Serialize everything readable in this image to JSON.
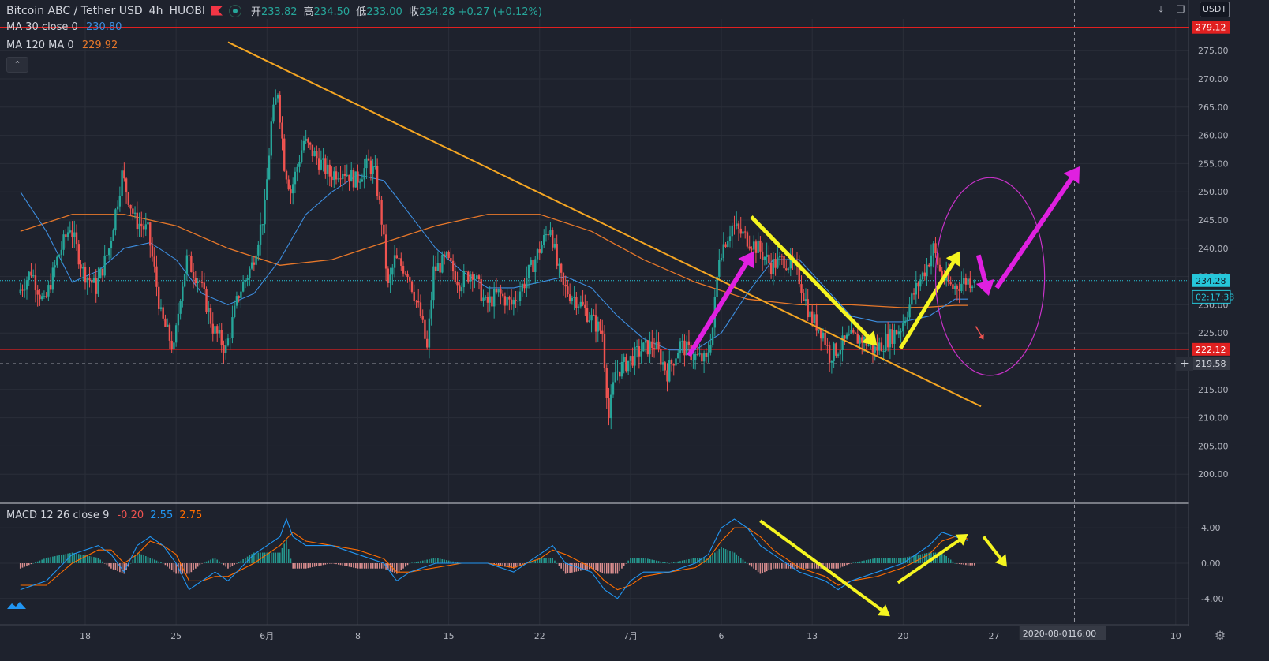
{
  "header": {
    "symbol": "Bitcoin ABC / Tether USD",
    "interval": "4h",
    "exchange": "HUOBI",
    "open_label": "开",
    "open": "233.82",
    "high_label": "高",
    "high": "234.50",
    "low_label": "低",
    "low": "233.00",
    "close_label": "收",
    "close": "234.28",
    "change": "+0.27 (+0.12%)"
  },
  "indicators": [
    {
      "name": "MA 30 close 0",
      "value": "230.80",
      "color": "#3d8ee0"
    },
    {
      "name": "MA 120 MA 0",
      "value": "229.92",
      "color": "#e8782a"
    }
  ],
  "macd": {
    "name": "MACD 12 26 close 9",
    "hist": "-0.20",
    "macd": "2.55",
    "signal": "2.75"
  },
  "toolbar": {
    "currency": "USDT"
  },
  "icons": [
    "download-icon",
    "window-icon",
    "settings-gear-icon",
    "plus-icon",
    "tradingview-logo-icon",
    "flag-icon",
    "live-dot-icon"
  ],
  "colors": {
    "up": "#26a69a",
    "down": "#ef5350",
    "ma30": "#3d8ee0",
    "ma120": "#e8782a",
    "trendline": "#f5a623",
    "hline": "#e02020",
    "magenta": "#e020e0",
    "yellow": "#f5f520",
    "macd_line": "#2196f3",
    "signal_line": "#ff6d00"
  },
  "chart_data": {
    "type": "candlestick",
    "price_axis": {
      "min": 195,
      "max": 283,
      "ticks": [
        "275.00",
        "270.00",
        "265.00",
        "260.00",
        "255.00",
        "250.00",
        "245.00",
        "240.00",
        "235.00",
        "230.00",
        "225.00",
        "210.00",
        "205.00",
        "200.00"
      ],
      "tick_values": [
        275,
        270,
        265,
        260,
        255,
        250,
        245,
        240,
        235,
        230,
        225,
        210,
        205,
        200
      ],
      "lower_ticks": [
        "215.00"
      ],
      "lower_tick_values": [
        215
      ]
    },
    "price_labels": [
      {
        "text": "279.12",
        "value": 279.12,
        "style": "red"
      },
      {
        "text": "234.28",
        "value": 234.28,
        "style": "cyan"
      },
      {
        "text": "02:17:33",
        "value": 231.4,
        "style": "cyan-outline"
      },
      {
        "text": "222.12",
        "value": 222.12,
        "style": "red"
      },
      {
        "text": "219.58",
        "value": 219.58,
        "style": "grey"
      }
    ],
    "horizontal_lines": [
      {
        "value": 279.12,
        "color": "#e02020"
      },
      {
        "value": 222.12,
        "color": "#e02020"
      }
    ],
    "current_price_line": 234.28,
    "crosshair_price": 219.58,
    "x_axis": {
      "labels": [
        "18",
        "25",
        "6月",
        "8",
        "15",
        "22",
        "7月",
        "6",
        "13",
        "20",
        "27",
        "2020-08-01",
        "16:00",
        "10"
      ],
      "label_positions_days": [
        5,
        12,
        19,
        26,
        33,
        40,
        47,
        54,
        61,
        68,
        75,
        80,
        81.2,
        89
      ]
    },
    "day_start": "2020-05-14",
    "candles_day_range": [
      0,
      73.5
    ],
    "price_keypoints": [
      [
        0,
        232
      ],
      [
        1,
        236
      ],
      [
        2,
        230
      ],
      [
        3,
        238
      ],
      [
        4,
        244
      ],
      [
        5,
        236
      ],
      [
        6,
        233
      ],
      [
        7,
        240
      ],
      [
        8,
        253
      ],
      [
        9,
        245
      ],
      [
        10,
        243
      ],
      [
        10.5,
        236
      ],
      [
        11,
        228
      ],
      [
        12,
        222
      ],
      [
        12.5,
        232
      ],
      [
        13,
        238
      ],
      [
        14,
        234
      ],
      [
        15,
        226
      ],
      [
        16,
        222
      ],
      [
        17,
        232
      ],
      [
        18,
        237
      ],
      [
        19,
        247
      ],
      [
        19.5,
        262
      ],
      [
        20,
        268
      ],
      [
        20.5,
        255
      ],
      [
        21,
        250
      ],
      [
        22,
        259
      ],
      [
        23,
        256
      ],
      [
        24,
        253
      ],
      [
        25,
        254
      ],
      [
        26,
        252
      ],
      [
        27,
        255
      ],
      [
        27.5,
        253
      ],
      [
        28,
        245
      ],
      [
        28.5,
        233
      ],
      [
        29,
        238
      ],
      [
        30,
        236
      ],
      [
        31,
        228
      ],
      [
        31.5,
        222
      ],
      [
        32,
        236
      ],
      [
        33,
        238
      ],
      [
        34,
        234
      ],
      [
        35,
        236
      ],
      [
        36,
        230
      ],
      [
        37,
        232
      ],
      [
        38,
        230
      ],
      [
        39,
        234
      ],
      [
        40,
        239
      ],
      [
        41,
        244
      ],
      [
        41.5,
        237
      ],
      [
        42,
        233
      ],
      [
        43,
        231
      ],
      [
        44,
        228
      ],
      [
        45,
        225
      ],
      [
        45.5,
        210
      ],
      [
        46,
        218
      ],
      [
        47,
        220
      ],
      [
        48,
        222
      ],
      [
        49,
        223
      ],
      [
        50,
        218
      ],
      [
        51,
        223
      ],
      [
        52,
        221
      ],
      [
        53,
        220
      ],
      [
        53.5,
        226
      ],
      [
        54,
        239
      ],
      [
        55,
        244
      ],
      [
        56,
        242
      ],
      [
        57,
        240
      ],
      [
        58,
        237
      ],
      [
        59,
        238
      ],
      [
        60,
        236
      ],
      [
        60.5,
        232
      ],
      [
        61,
        228
      ],
      [
        62,
        225
      ],
      [
        62.5,
        221
      ],
      [
        63,
        222
      ],
      [
        64,
        224
      ],
      [
        65,
        224
      ],
      [
        66,
        222
      ],
      [
        67,
        224
      ],
      [
        68,
        226
      ],
      [
        69,
        232
      ],
      [
        70,
        237
      ],
      [
        70.5,
        240
      ],
      [
        71,
        236
      ],
      [
        71.5,
        234
      ],
      [
        72,
        233
      ],
      [
        73,
        234.3
      ]
    ],
    "ma30_keypoints": [
      [
        0,
        250
      ],
      [
        2,
        243
      ],
      [
        4,
        234
      ],
      [
        6,
        236
      ],
      [
        8,
        240
      ],
      [
        10,
        241
      ],
      [
        12,
        238
      ],
      [
        14,
        232
      ],
      [
        16,
        230
      ],
      [
        18,
        232
      ],
      [
        20,
        238
      ],
      [
        22,
        246
      ],
      [
        24,
        250
      ],
      [
        26,
        253
      ],
      [
        28,
        252
      ],
      [
        30,
        246
      ],
      [
        32,
        240
      ],
      [
        34,
        236
      ],
      [
        36,
        233
      ],
      [
        38,
        233
      ],
      [
        40,
        234
      ],
      [
        42,
        235
      ],
      [
        44,
        233
      ],
      [
        46,
        228
      ],
      [
        48,
        224
      ],
      [
        50,
        222
      ],
      [
        52,
        222
      ],
      [
        54,
        225
      ],
      [
        56,
        232
      ],
      [
        58,
        238
      ],
      [
        60,
        238
      ],
      [
        62,
        233
      ],
      [
        64,
        228
      ],
      [
        66,
        227
      ],
      [
        68,
        227
      ],
      [
        70,
        228
      ],
      [
        72,
        231
      ],
      [
        73,
        231
      ]
    ],
    "ma120_keypoints": [
      [
        0,
        243
      ],
      [
        4,
        246
      ],
      [
        8,
        246
      ],
      [
        12,
        244
      ],
      [
        16,
        240
      ],
      [
        20,
        237
      ],
      [
        24,
        238
      ],
      [
        28,
        241
      ],
      [
        32,
        244
      ],
      [
        36,
        246
      ],
      [
        40,
        246
      ],
      [
        44,
        243
      ],
      [
        48,
        238
      ],
      [
        52,
        234
      ],
      [
        56,
        231
      ],
      [
        60,
        230
      ],
      [
        64,
        230
      ],
      [
        68,
        229.5
      ],
      [
        70,
        229.6
      ],
      [
        72,
        229.9
      ],
      [
        73,
        229.9
      ]
    ],
    "macd_axis": {
      "ticks": [
        "4.00",
        "0.00",
        "-4.00"
      ],
      "tick_values": [
        4,
        0,
        -4
      ],
      "min": -6.5,
      "max": 7.2
    },
    "macd_keypoints": [
      [
        0,
        -3
      ],
      [
        2,
        -2
      ],
      [
        4,
        1
      ],
      [
        6,
        2
      ],
      [
        7,
        1
      ],
      [
        8,
        -1
      ],
      [
        9,
        2
      ],
      [
        10,
        3
      ],
      [
        11,
        2
      ],
      [
        12,
        0
      ],
      [
        13,
        -3
      ],
      [
        14,
        -2
      ],
      [
        15,
        -1
      ],
      [
        16,
        -2
      ],
      [
        18,
        1
      ],
      [
        20,
        3
      ],
      [
        20.5,
        5
      ],
      [
        21,
        3
      ],
      [
        22,
        2
      ],
      [
        24,
        2
      ],
      [
        26,
        1
      ],
      [
        28,
        0
      ],
      [
        29,
        -2
      ],
      [
        30,
        -1
      ],
      [
        32,
        0
      ],
      [
        34,
        0
      ],
      [
        36,
        0
      ],
      [
        38,
        -1
      ],
      [
        40,
        1
      ],
      [
        41,
        2
      ],
      [
        42,
        0
      ],
      [
        44,
        -1
      ],
      [
        45,
        -3
      ],
      [
        46,
        -4
      ],
      [
        47,
        -2
      ],
      [
        48,
        -1
      ],
      [
        50,
        -1
      ],
      [
        52,
        0
      ],
      [
        53,
        1
      ],
      [
        54,
        4
      ],
      [
        55,
        5
      ],
      [
        56,
        4
      ],
      [
        57,
        2
      ],
      [
        58,
        1
      ],
      [
        59,
        0
      ],
      [
        60,
        -1
      ],
      [
        62,
        -2
      ],
      [
        63,
        -3
      ],
      [
        64,
        -2
      ],
      [
        66,
        -1
      ],
      [
        68,
        0
      ],
      [
        70,
        2
      ],
      [
        71,
        3.5
      ],
      [
        72,
        3
      ],
      [
        73,
        2.55
      ]
    ],
    "signal_keypoints": [
      [
        0,
        -2.5
      ],
      [
        2,
        -2.5
      ],
      [
        4,
        0
      ],
      [
        6,
        1.5
      ],
      [
        7,
        1.5
      ],
      [
        8,
        0
      ],
      [
        9,
        1
      ],
      [
        10,
        2.5
      ],
      [
        11,
        2
      ],
      [
        12,
        1
      ],
      [
        13,
        -2
      ],
      [
        14,
        -2
      ],
      [
        15,
        -1.5
      ],
      [
        16,
        -1.5
      ],
      [
        18,
        0
      ],
      [
        20,
        2
      ],
      [
        21,
        3.5
      ],
      [
        22,
        2.5
      ],
      [
        24,
        2
      ],
      [
        26,
        1.5
      ],
      [
        28,
        0.5
      ],
      [
        29,
        -1
      ],
      [
        30,
        -1
      ],
      [
        32,
        -0.5
      ],
      [
        34,
        0
      ],
      [
        36,
        0
      ],
      [
        38,
        -0.5
      ],
      [
        40,
        0.5
      ],
      [
        41,
        1.5
      ],
      [
        42,
        1
      ],
      [
        44,
        -0.5
      ],
      [
        45,
        -2
      ],
      [
        46,
        -3
      ],
      [
        47,
        -2.5
      ],
      [
        48,
        -1.5
      ],
      [
        50,
        -1
      ],
      [
        52,
        -0.5
      ],
      [
        53,
        0.5
      ],
      [
        54,
        2.5
      ],
      [
        55,
        4
      ],
      [
        56,
        4
      ],
      [
        57,
        3
      ],
      [
        58,
        1.5
      ],
      [
        59,
        0.5
      ],
      [
        60,
        -0.5
      ],
      [
        62,
        -1.5
      ],
      [
        63,
        -2.5
      ],
      [
        64,
        -2
      ],
      [
        66,
        -1.5
      ],
      [
        68,
        -0.5
      ],
      [
        70,
        1
      ],
      [
        71,
        2.5
      ],
      [
        72,
        3
      ],
      [
        73,
        2.75
      ]
    ],
    "drawings": {
      "trendline": {
        "from": [
          16,
          276.5
        ],
        "to": [
          74,
          212
        ]
      },
      "magenta_arrows": [
        {
          "from": [
            51.5,
            221
          ],
          "to": [
            56.5,
            239.5
          ]
        },
        {
          "from": [
            73.8,
            238.8
          ],
          "to": [
            74.6,
            231.6
          ]
        },
        {
          "from": [
            75.2,
            233
          ],
          "to": [
            81.6,
            254.5
          ]
        }
      ],
      "yellow_arrows": [
        {
          "from": [
            56.3,
            245.6
          ],
          "to": [
            66.0,
            222.7
          ]
        },
        {
          "from": [
            67.8,
            222.3
          ],
          "to": [
            72.4,
            239.5
          ]
        }
      ],
      "red_small_arrow": {
        "from": [
          73.6,
          226.2
        ],
        "to": [
          74.2,
          223.8
        ]
      },
      "ellipse": {
        "center": [
          74.7,
          235
        ],
        "radius_days": 4.2,
        "radius_price": 17.5,
        "color": "#c832c8"
      },
      "macd_yellow_arrows": [
        {
          "from": [
            57.0,
            4.8
          ],
          "to": [
            67.0,
            -6.0
          ]
        },
        {
          "from": [
            67.6,
            -2.2
          ],
          "to": [
            73.0,
            3.3
          ]
        },
        {
          "from": [
            74.2,
            3.0
          ],
          "to": [
            76.0,
            -0.4
          ]
        }
      ]
    }
  }
}
